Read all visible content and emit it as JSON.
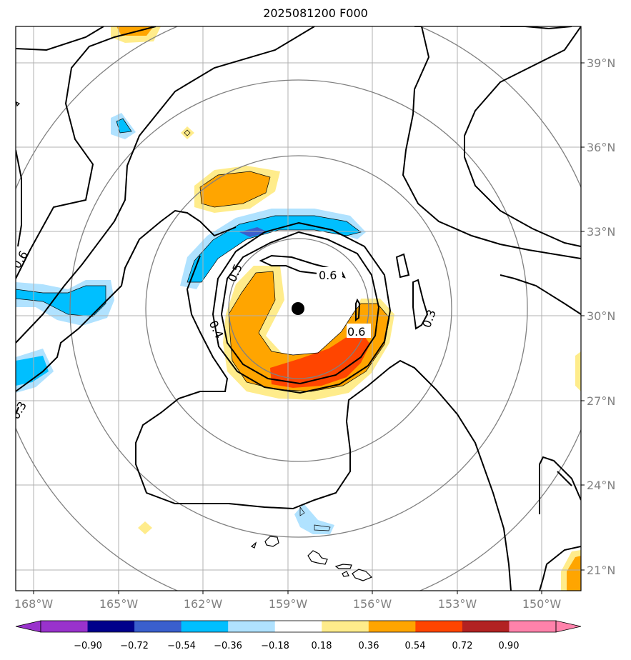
{
  "title": "2025081200 F000",
  "lon_labels": [
    "168°W",
    "165°W",
    "162°W",
    "159°W",
    "156°W",
    "153°W",
    "150°W"
  ],
  "lat_labels": [
    "39°N",
    "36°N",
    "33°N",
    "30°N",
    "27°N",
    "24°N",
    "21°N"
  ],
  "contour_labels": [
    "0.6",
    "0.6",
    "0.5",
    "0.4",
    "0.3",
    "0.3",
    "0.6"
  ],
  "colorbar": {
    "ticks": [
      "−0.90",
      "−0.72",
      "−0.54",
      "−0.36",
      "−0.18",
      "0.18",
      "0.36",
      "0.54",
      "0.72",
      "0.90"
    ],
    "colors": [
      "#9932cc",
      "#00008b",
      "#3a5fcd",
      "#00bfff",
      "#b0e2ff",
      "#ffffff",
      "#ffec8b",
      "#ffa500",
      "#ff4500",
      "#b22222",
      "#ff82ab"
    ]
  },
  "center_marker": "storm-center-dot"
}
